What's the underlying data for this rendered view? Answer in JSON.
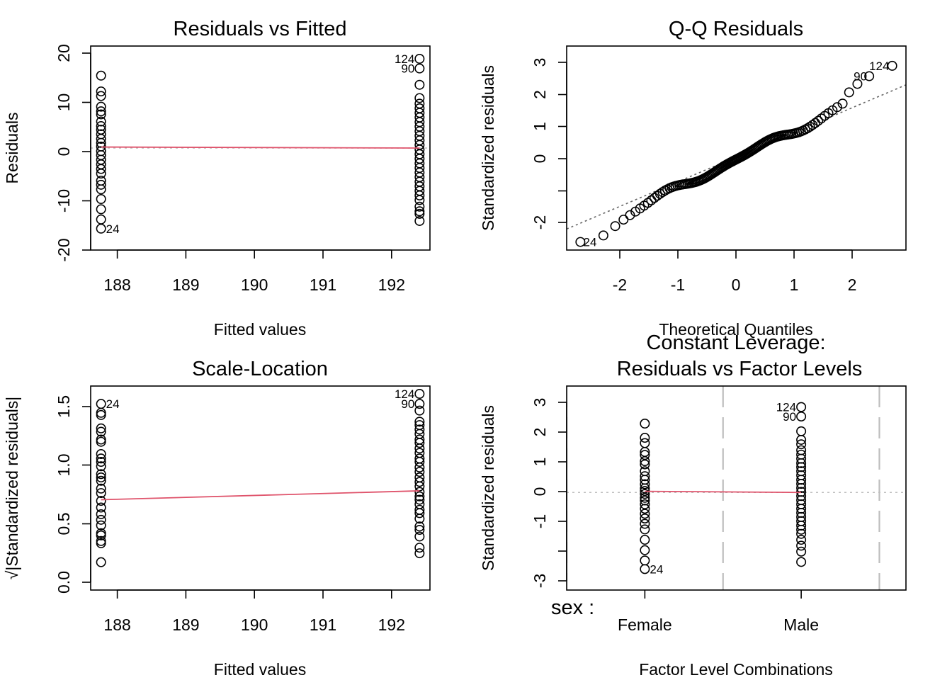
{
  "colors": {
    "smoother": "#DF536B",
    "reference": "#666666",
    "grid": "#BEBEBE",
    "points": "#000000"
  },
  "chart_data": [
    {
      "type": "scatter",
      "title": "Residuals vs Fitted",
      "xlabel": "Fitted values",
      "ylabel": "Residuals",
      "xlim": [
        187.65,
        192.55
      ],
      "ylim": [
        -20,
        20
      ],
      "xticks": [
        "188",
        "189",
        "190",
        "191",
        "192"
      ],
      "yticks": [
        "-20",
        "-10",
        "0",
        "10",
        "20"
      ],
      "groups": [
        {
          "x": 187.8,
          "y": [
            14.2,
            11.1,
            10.2,
            8.1,
            7.2,
            6.6,
            5.2,
            4.3,
            3.6,
            2.7,
            1.8,
            1.0,
            0.3,
            -0.6,
            -1.4,
            -2.3,
            -3.2,
            -4.1,
            -5.0,
            -6.4,
            -7.2,
            -8.1,
            -10.0,
            -12.0,
            -14.0,
            -15.8
          ]
        },
        {
          "x": 192.4,
          "y": [
            17.5,
            15.6,
            12.4,
            9.8,
            8.7,
            7.8,
            6.9,
            6.0,
            5.1,
            4.2,
            3.3,
            2.4,
            1.5,
            0.6,
            -0.3,
            -1.2,
            -2.1,
            -3.0,
            -3.9,
            -4.8,
            -5.7,
            -6.6,
            -7.5,
            -8.4,
            -9.3,
            -10.2,
            -11.5,
            -12.4,
            -12.9,
            -14.3
          ]
        }
      ],
      "smoother": [
        [
          187.8,
          0.2
        ],
        [
          192.4,
          0.0
        ]
      ],
      "reference_y": 0,
      "point_labels": [
        {
          "text": "124",
          "x": 192.4,
          "y": 17.5,
          "side": "left"
        },
        {
          "text": "90",
          "x": 192.4,
          "y": 15.6,
          "side": "left"
        },
        {
          "text": "24",
          "x": 187.8,
          "y": -15.8,
          "side": "right"
        }
      ]
    },
    {
      "type": "scatter",
      "title": "Q-Q Residuals",
      "xlabel": "Theoretical Quantiles",
      "ylabel": "Standardized residuals",
      "xlim": [
        -2.9,
        2.9
      ],
      "ylim": [
        -2.8,
        3.5
      ],
      "xticks": [
        "-2",
        "-1",
        "0",
        "1",
        "2"
      ],
      "yticks": [
        "-2",
        "",
        "0",
        "1",
        "2",
        "3"
      ],
      "reference_line": [
        [
          -2.9,
          -2.15
        ],
        [
          2.9,
          2.3
        ]
      ],
      "point_labels": [
        {
          "text": "124",
          "x": 2.7,
          "y": 2.89,
          "side": "left"
        },
        {
          "text": "90",
          "x": 2.32,
          "y": 2.57,
          "side": "left"
        },
        {
          "text": "24",
          "x": -2.7,
          "y": -2.55,
          "side": "right"
        }
      ]
    },
    {
      "type": "scatter",
      "title": "Scale-Location",
      "xlabel": "Fitted values",
      "ylabel": "√|Standardized residuals|",
      "xlim": [
        187.65,
        192.55
      ],
      "ylim": [
        -0.06,
        1.77
      ],
      "xticks": [
        "188",
        "189",
        "190",
        "191",
        "192"
      ],
      "yticks": [
        "0.0",
        "0.5",
        "1.0",
        "1.5"
      ],
      "groups": [
        {
          "x": 187.8,
          "y": [
            1.61,
            1.53,
            1.51,
            1.39,
            1.36,
            1.29,
            1.27,
            1.16,
            1.12,
            1.09,
            1.05,
            0.98,
            0.95,
            0.92,
            0.85,
            0.81,
            0.74,
            0.68,
            0.62,
            0.57,
            0.52,
            0.45,
            0.43,
            0.38,
            0.36,
            0.19
          ]
        },
        {
          "x": 192.4,
          "y": [
            1.7,
            1.61,
            1.55,
            1.45,
            1.42,
            1.38,
            1.34,
            1.29,
            1.26,
            1.21,
            1.17,
            1.12,
            1.09,
            1.04,
            1.0,
            0.95,
            0.91,
            0.87,
            0.82,
            0.78,
            0.75,
            0.71,
            0.66,
            0.63,
            0.58,
            0.51,
            0.48,
            0.42,
            0.32,
            0.27
          ]
        }
      ],
      "smoother": [
        [
          187.8,
          0.75
        ],
        [
          192.4,
          0.83
        ]
      ],
      "point_labels": [
        {
          "text": "124",
          "x": 192.4,
          "y": 1.7,
          "side": "left"
        },
        {
          "text": "90",
          "x": 192.4,
          "y": 1.61,
          "side": "left"
        },
        {
          "text": "24",
          "x": 187.8,
          "y": 1.61,
          "side": "right"
        }
      ]
    },
    {
      "type": "scatter",
      "title": "Constant Leverage:",
      "subtitle": "Residuals vs Factor Levels",
      "xlabel": "Factor Level Combinations",
      "ylabel": "Standardized residuals",
      "factor_label": "sex :",
      "xlim": [
        0,
        2.17
      ],
      "ylim": [
        -3.3,
        3.6
      ],
      "categories": [
        "Female",
        "Male"
      ],
      "category_x": [
        0.5,
        1.5
      ],
      "yticks": [
        "-3",
        "",
        "-1",
        "0",
        "1",
        "2",
        "3"
      ],
      "groups": [
        {
          "x": 0.5,
          "y": [
            2.33,
            1.85,
            1.67,
            1.37,
            1.27,
            1.06,
            0.95,
            0.72,
            0.55,
            0.43,
            0.28,
            0.14,
            0.05,
            -0.05,
            -0.18,
            -0.27,
            -0.4,
            -0.55,
            -0.72,
            -0.88,
            -1.06,
            -1.25,
            -1.6,
            -1.95,
            -2.3,
            -2.59
          ]
        },
        {
          "x": 1.5,
          "y": [
            2.89,
            2.57,
            2.07,
            1.78,
            1.63,
            1.43,
            1.28,
            1.14,
            0.99,
            0.86,
            0.72,
            0.58,
            0.43,
            0.29,
            0.15,
            0.02,
            -0.12,
            -0.26,
            -0.4,
            -0.55,
            -0.69,
            -0.83,
            -0.97,
            -1.12,
            -1.26,
            -1.4,
            -1.6,
            -1.8,
            -2.0,
            -2.35
          ]
        }
      ],
      "smoother": [
        [
          0.5,
          0.04
        ],
        [
          1.5,
          0.0
        ]
      ],
      "reference_y": 0,
      "separators_x": [
        0.0,
        1.0,
        2.0
      ],
      "point_labels": [
        {
          "text": "124",
          "x": 1.5,
          "y": 2.89,
          "side": "left"
        },
        {
          "text": "90",
          "x": 1.5,
          "y": 2.57,
          "side": "left"
        },
        {
          "text": "24",
          "x": 0.5,
          "y": -2.59,
          "side": "right"
        }
      ]
    }
  ]
}
